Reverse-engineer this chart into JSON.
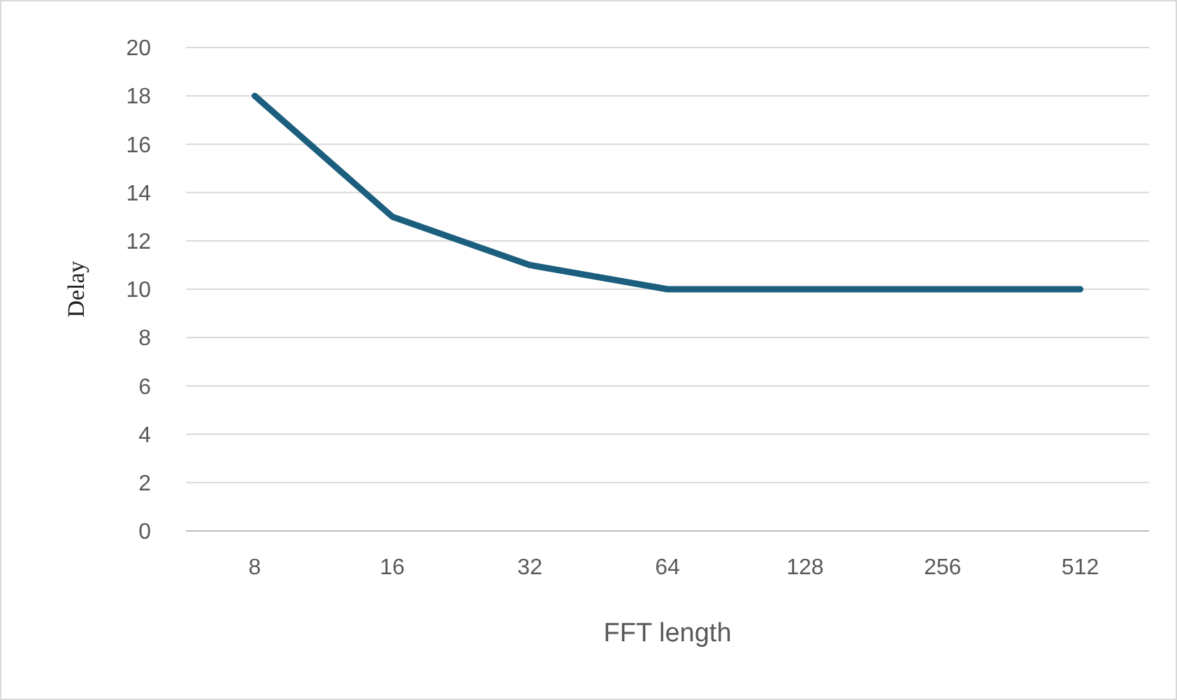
{
  "chart_data": {
    "type": "line",
    "xlabel": "FFT length",
    "ylabel": "Delay",
    "categories": [
      "8",
      "16",
      "32",
      "64",
      "128",
      "256",
      "512"
    ],
    "series": [
      {
        "color": "#1b5e7e",
        "values": [
          18,
          13,
          11,
          10,
          10,
          10,
          10
        ]
      }
    ],
    "ylim": [
      0,
      20
    ],
    "yticks": [
      0,
      2,
      4,
      6,
      8,
      10,
      12,
      14,
      16,
      18,
      20
    ],
    "grid": "y",
    "marker": "none",
    "line_style": "solid"
  }
}
